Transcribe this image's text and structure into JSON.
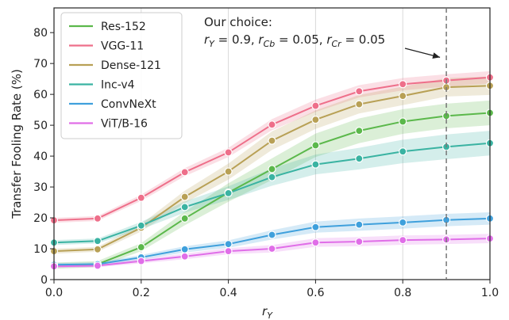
{
  "chart_data": {
    "type": "line",
    "x": [
      0.0,
      0.1,
      0.2,
      0.3,
      0.4,
      0.5,
      0.6,
      0.7,
      0.8,
      0.9,
      1.0
    ],
    "xlabel": "r_Y",
    "ylabel": "Transfer Fooling Rate (%)",
    "xlim": [
      0.0,
      1.0
    ],
    "ylim": [
      0,
      88
    ],
    "xticks": [
      "0.0",
      "0.2",
      "0.4",
      "0.6",
      "0.8",
      "1.0"
    ],
    "xtick_values": [
      0.0,
      0.2,
      0.4,
      0.6,
      0.8,
      1.0
    ],
    "yticks": [
      "0",
      "10",
      "20",
      "30",
      "40",
      "50",
      "60",
      "70",
      "80"
    ],
    "ytick_values": [
      0,
      10,
      20,
      30,
      40,
      50,
      60,
      70,
      80
    ],
    "grid": "x-only",
    "legend_position": "top-left",
    "series": [
      {
        "name": "Res-152",
        "color": "#5bb84b",
        "values": [
          4.5,
          5.0,
          10.5,
          19.8,
          28.2,
          35.8,
          43.5,
          48.2,
          51.2,
          53.0,
          54.0
        ],
        "band": [
          1.0,
          1.0,
          1.3,
          2.2,
          3.0,
          3.5,
          3.8,
          4.0,
          4.0,
          4.0,
          4.0
        ]
      },
      {
        "name": "VGG-11",
        "color": "#ee6f8a",
        "values": [
          19.2,
          19.8,
          26.5,
          34.8,
          41.2,
          50.2,
          56.3,
          61.0,
          63.3,
          64.5,
          65.5
        ],
        "band": [
          0.8,
          0.8,
          1.0,
          1.3,
          1.5,
          1.8,
          2.0,
          2.0,
          2.0,
          2.0,
          2.0
        ]
      },
      {
        "name": "Dense-121",
        "color": "#b8a055",
        "values": [
          9.2,
          9.8,
          16.8,
          26.8,
          35.0,
          45.0,
          51.8,
          56.8,
          59.5,
          62.3,
          62.8
        ],
        "band": [
          0.8,
          0.8,
          1.2,
          2.0,
          2.6,
          3.0,
          3.0,
          3.0,
          3.0,
          3.0,
          3.0
        ]
      },
      {
        "name": "Inc-v4",
        "color": "#3ab3a2",
        "values": [
          12.0,
          12.5,
          17.5,
          23.5,
          28.0,
          33.2,
          37.3,
          39.2,
          41.5,
          43.0,
          44.2
        ],
        "band": [
          0.8,
          0.8,
          1.2,
          1.8,
          2.2,
          2.8,
          3.2,
          3.5,
          3.8,
          4.0,
          4.0
        ]
      },
      {
        "name": "ConvNeXt",
        "color": "#3fa0dc",
        "values": [
          4.8,
          5.0,
          7.2,
          9.8,
          11.5,
          14.5,
          17.0,
          17.8,
          18.5,
          19.3,
          19.8
        ],
        "band": [
          0.6,
          0.6,
          0.8,
          1.0,
          1.2,
          1.5,
          1.8,
          2.0,
          2.0,
          2.0,
          2.0
        ]
      },
      {
        "name": "ViT/B-16",
        "color": "#e06ee8",
        "values": [
          4.3,
          4.5,
          6.0,
          7.5,
          9.2,
          10.0,
          12.0,
          12.3,
          12.8,
          13.0,
          13.3
        ],
        "band": [
          0.5,
          0.5,
          0.7,
          0.9,
          1.0,
          1.2,
          1.4,
          1.5,
          1.5,
          1.5,
          1.5
        ]
      }
    ],
    "annotation": {
      "title": "Our choice:",
      "formula": "r_Y = 0.9, r_Cb = 0.05, r_Cr = 0.05",
      "arrow_target": {
        "x": 0.9,
        "y": 72
      },
      "vline_x": 0.9
    }
  }
}
